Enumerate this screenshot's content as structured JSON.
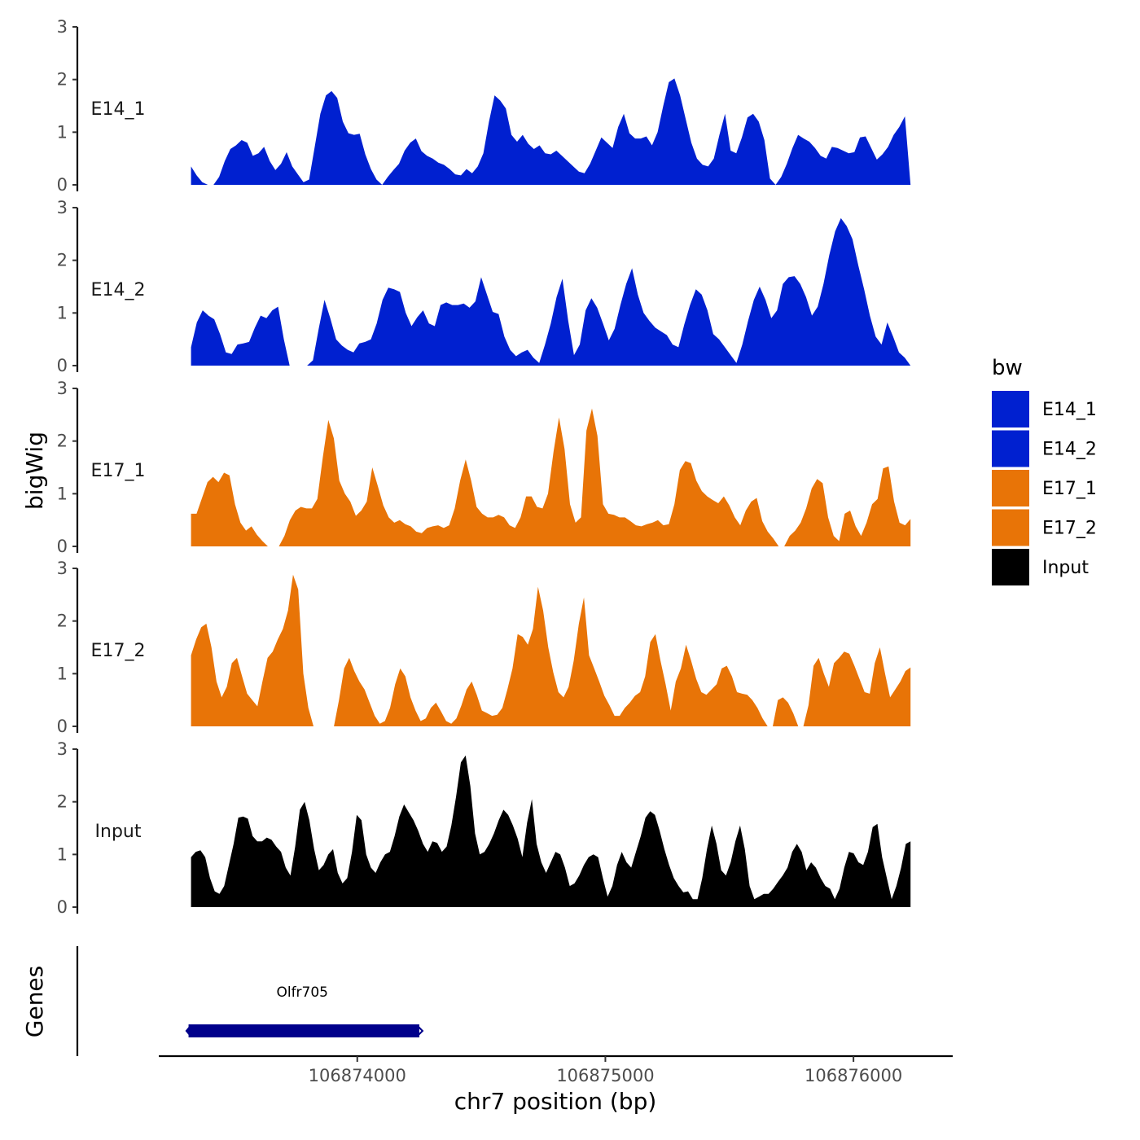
{
  "chart_data": {
    "type": "area",
    "ylabel": "bigWig",
    "xlabel": "chr7 position (bp)",
    "ylim": [
      0,
      3
    ],
    "yticks": [
      0,
      1,
      2,
      3
    ],
    "xlim": [
      106873200,
      106876400
    ],
    "xticks": [
      106874000,
      106875000,
      106876000
    ],
    "xtick_labels": [
      "106874000",
      "106875000",
      "106876000"
    ],
    "data_x_range": [
      106873330,
      106876230
    ],
    "tracks": [
      {
        "name": "E14_1",
        "color": "#0020D0",
        "values": [
          0.35,
          0.18,
          0.05,
          0,
          0,
          0.15,
          0.45,
          0.68,
          0.75,
          0.85,
          0.8,
          0.55,
          0.6,
          0.72,
          0.45,
          0.28,
          0.4,
          0.62,
          0.35,
          0.2,
          0.05,
          0.1,
          0.72,
          1.35,
          1.7,
          1.78,
          1.65,
          1.2,
          0.98,
          0.95,
          0.97,
          0.58,
          0.3,
          0.1,
          0,
          0.15,
          0.28,
          0.4,
          0.65,
          0.8,
          0.88,
          0.64,
          0.55,
          0.5,
          0.42,
          0.38,
          0.3,
          0.2,
          0.18,
          0.3,
          0.22,
          0.35,
          0.6,
          1.2,
          1.7,
          1.6,
          1.45,
          0.95,
          0.82,
          0.95,
          0.78,
          0.68,
          0.75,
          0.6,
          0.58,
          0.65,
          0.55,
          0.45,
          0.35,
          0.25,
          0.22,
          0.4,
          0.65,
          0.9,
          0.8,
          0.7,
          1.1,
          1.35,
          0.98,
          0.88,
          0.88,
          0.92,
          0.75,
          1.0,
          1.5,
          1.95,
          2.02,
          1.7,
          1.25,
          0.8,
          0.5,
          0.38,
          0.35,
          0.5,
          0.95,
          1.35,
          0.65,
          0.6,
          0.9,
          1.28,
          1.35,
          1.2,
          0.85,
          0.12,
          0,
          0.15,
          0.4,
          0.7,
          0.95,
          0.88,
          0.82,
          0.7,
          0.55,
          0.5,
          0.72,
          0.7,
          0.65,
          0.6,
          0.62,
          0.9,
          0.92,
          0.7,
          0.48,
          0.58,
          0.72,
          0.95,
          1.1,
          1.3,
          0
        ]
      },
      {
        "name": "E14_2",
        "color": "#0020D0",
        "values": [
          0.35,
          0.82,
          1.05,
          0.95,
          0.88,
          0.6,
          0.25,
          0.22,
          0.4,
          0.42,
          0.45,
          0.72,
          0.95,
          0.9,
          1.05,
          1.12,
          0.5,
          0,
          0,
          0,
          0,
          0.1,
          0.7,
          1.25,
          0.9,
          0.5,
          0.38,
          0.3,
          0.25,
          0.42,
          0.45,
          0.5,
          0.8,
          1.25,
          1.48,
          1.45,
          1.4,
          1.0,
          0.75,
          0.92,
          1.05,
          0.8,
          0.75,
          1.15,
          1.2,
          1.15,
          1.15,
          1.18,
          1.1,
          1.22,
          1.68,
          1.35,
          1.02,
          0.98,
          0.55,
          0.3,
          0.18,
          0.25,
          0.3,
          0.15,
          0.05,
          0.4,
          0.8,
          1.3,
          1.65,
          0.85,
          0.2,
          0.4,
          1.05,
          1.28,
          1.1,
          0.8,
          0.48,
          0.7,
          1.15,
          1.55,
          1.85,
          1.35,
          1.0,
          0.85,
          0.72,
          0.65,
          0.58,
          0.4,
          0.35,
          0.78,
          1.15,
          1.45,
          1.35,
          1.05,
          0.6,
          0.5,
          0.35,
          0.2,
          0.05,
          0.4,
          0.85,
          1.25,
          1.5,
          1.25,
          0.9,
          1.05,
          1.55,
          1.68,
          1.7,
          1.55,
          1.3,
          0.95,
          1.12,
          1.55,
          2.1,
          2.55,
          2.8,
          2.65,
          2.4,
          1.9,
          1.45,
          0.95,
          0.55,
          0.4,
          0.82,
          0.55,
          0.25,
          0.15,
          0
        ]
      },
      {
        "name": "E17_1",
        "color": "#E87407",
        "values": [
          0.62,
          0.62,
          0.92,
          1.22,
          1.32,
          1.22,
          1.4,
          1.35,
          0.8,
          0.45,
          0.3,
          0.38,
          0.22,
          0.1,
          0,
          0,
          0,
          0.2,
          0.5,
          0.68,
          0.75,
          0.72,
          0.72,
          0.9,
          1.7,
          2.4,
          2.05,
          1.25,
          1.0,
          0.85,
          0.58,
          0.68,
          0.85,
          1.5,
          1.15,
          0.78,
          0.55,
          0.45,
          0.5,
          0.42,
          0.38,
          0.28,
          0.25,
          0.35,
          0.38,
          0.4,
          0.35,
          0.4,
          0.72,
          1.25,
          1.65,
          1.25,
          0.75,
          0.62,
          0.55,
          0.55,
          0.6,
          0.55,
          0.4,
          0.35,
          0.55,
          0.95,
          0.95,
          0.75,
          0.72,
          1.0,
          1.8,
          2.45,
          1.85,
          0.8,
          0.45,
          0.55,
          2.2,
          2.62,
          2.1,
          0.8,
          0.62,
          0.6,
          0.55,
          0.55,
          0.48,
          0.4,
          0.38,
          0.42,
          0.45,
          0.5,
          0.4,
          0.42,
          0.8,
          1.45,
          1.62,
          1.58,
          1.25,
          1.05,
          0.95,
          0.88,
          0.82,
          0.95,
          0.78,
          0.55,
          0.4,
          0.68,
          0.85,
          0.92,
          0.48,
          0.28,
          0.15,
          0,
          0,
          0.2,
          0.3,
          0.45,
          0.72,
          1.1,
          1.28,
          1.2,
          0.55,
          0.2,
          0.1,
          0.62,
          0.68,
          0.38,
          0.2,
          0.45,
          0.8,
          0.9,
          1.48,
          1.52,
          0.85,
          0.45,
          0.4,
          0.52
        ]
      },
      {
        "name": "E17_2",
        "color": "#E87407",
        "values": [
          1.35,
          1.65,
          1.88,
          1.95,
          1.5,
          0.85,
          0.55,
          0.75,
          1.2,
          1.3,
          0.95,
          0.62,
          0.5,
          0.38,
          0.85,
          1.3,
          1.42,
          1.65,
          1.85,
          2.2,
          2.88,
          2.6,
          1.0,
          0.35,
          0,
          0,
          0,
          0,
          0,
          0.5,
          1.1,
          1.3,
          1.05,
          0.85,
          0.7,
          0.45,
          0.2,
          0.05,
          0.1,
          0.35,
          0.8,
          1.1,
          0.95,
          0.55,
          0.3,
          0.1,
          0.15,
          0.35,
          0.45,
          0.28,
          0.1,
          0.05,
          0.15,
          0.4,
          0.7,
          0.85,
          0.6,
          0.3,
          0.25,
          0.2,
          0.22,
          0.35,
          0.7,
          1.1,
          1.75,
          1.7,
          1.55,
          1.85,
          2.65,
          2.2,
          1.5,
          1.02,
          0.65,
          0.55,
          0.75,
          1.25,
          1.95,
          2.45,
          1.35,
          1.1,
          0.85,
          0.58,
          0.4,
          0.2,
          0.2,
          0.35,
          0.45,
          0.58,
          0.65,
          0.95,
          1.6,
          1.75,
          1.25,
          0.8,
          0.3,
          0.85,
          1.1,
          1.55,
          1.25,
          0.9,
          0.65,
          0.6,
          0.7,
          0.8,
          1.1,
          1.15,
          0.95,
          0.65,
          0.62,
          0.6,
          0.5,
          0.35,
          0.15,
          0,
          0,
          0.5,
          0.55,
          0.45,
          0.25,
          0,
          0,
          0.4,
          1.15,
          1.3,
          1.0,
          0.75,
          1.2,
          1.3,
          1.42,
          1.38,
          1.15,
          0.9,
          0.65,
          0.62,
          1.2,
          1.5,
          1.0,
          0.55,
          0.7,
          0.85,
          1.05,
          1.12
        ]
      },
      {
        "name": "Input",
        "color": "#000000",
        "values": [
          0.95,
          1.05,
          1.08,
          0.95,
          0.55,
          0.3,
          0.25,
          0.4,
          0.8,
          1.2,
          1.7,
          1.72,
          1.68,
          1.35,
          1.25,
          1.25,
          1.32,
          1.28,
          1.15,
          1.05,
          0.75,
          0.6,
          1.15,
          1.85,
          2.0,
          1.65,
          1.1,
          0.7,
          0.8,
          1.0,
          1.1,
          0.65,
          0.45,
          0.55,
          1.05,
          1.75,
          1.65,
          1.0,
          0.75,
          0.65,
          0.85,
          1.0,
          1.05,
          1.35,
          1.72,
          1.95,
          1.8,
          1.65,
          1.45,
          1.2,
          1.05,
          1.25,
          1.22,
          1.05,
          1.15,
          1.55,
          2.1,
          2.75,
          2.88,
          2.3,
          1.4,
          1.0,
          1.05,
          1.2,
          1.4,
          1.65,
          1.85,
          1.75,
          1.55,
          1.3,
          0.95,
          1.6,
          2.05,
          1.2,
          0.85,
          0.65,
          0.85,
          1.05,
          1.0,
          0.75,
          0.4,
          0.45,
          0.6,
          0.8,
          0.95,
          1.0,
          0.95,
          0.55,
          0.2,
          0.4,
          0.8,
          1.05,
          0.85,
          0.75,
          1.05,
          1.35,
          1.7,
          1.82,
          1.75,
          1.45,
          1.1,
          0.8,
          0.55,
          0.4,
          0.28,
          0.3,
          0.15,
          0.15,
          0.55,
          1.1,
          1.55,
          1.2,
          0.7,
          0.6,
          0.85,
          1.25,
          1.55,
          1.1,
          0.4,
          0.15,
          0.2,
          0.25,
          0.25,
          0.35,
          0.48,
          0.6,
          0.75,
          1.05,
          1.2,
          1.05,
          0.7,
          0.85,
          0.75,
          0.55,
          0.4,
          0.35,
          0.15,
          0.35,
          0.75,
          1.05,
          1.02,
          0.85,
          0.8,
          1.05,
          1.52,
          1.58,
          0.95,
          0.55,
          0.15,
          0.4,
          0.75,
          1.2,
          1.25
        ]
      }
    ],
    "genes_track": {
      "ylabel": "Genes",
      "genes": [
        {
          "name": "Olfr705",
          "start": 106873320,
          "end": 106874250,
          "color": "#00008B"
        }
      ]
    },
    "legend": {
      "title": "bw",
      "position": "right",
      "entries": [
        {
          "label": "E14_1",
          "color": "#0020D0"
        },
        {
          "label": "E14_2",
          "color": "#0020D0"
        },
        {
          "label": "E17_1",
          "color": "#E87407"
        },
        {
          "label": "E17_2",
          "color": "#E87407"
        },
        {
          "label": "Input",
          "color": "#000000"
        }
      ]
    }
  }
}
